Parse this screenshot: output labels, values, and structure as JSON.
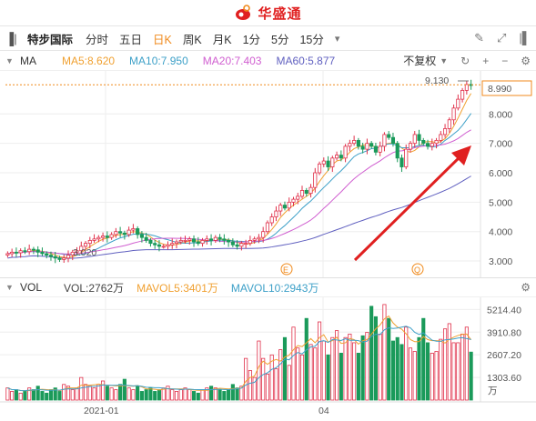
{
  "app": {
    "name": "华盛通"
  },
  "toolbar": {
    "stock_name": "特步国际",
    "periods": [
      {
        "label": "分时",
        "active": false
      },
      {
        "label": "五日",
        "active": false
      },
      {
        "label": "日K",
        "active": true
      },
      {
        "label": "周K",
        "active": false
      },
      {
        "label": "月K",
        "active": false
      },
      {
        "label": "1分",
        "active": false
      },
      {
        "label": "5分",
        "active": false
      },
      {
        "label": "15分",
        "active": false
      }
    ],
    "more_caret": "▾"
  },
  "ma_bar": {
    "name": "MA",
    "items": [
      {
        "label": "MA5:8.620",
        "color": "#f0a030"
      },
      {
        "label": "MA10:7.950",
        "color": "#3da0c8"
      },
      {
        "label": "MA20:7.403",
        "color": "#d05ed0"
      },
      {
        "label": "MA60:5.877",
        "color": "#6060c0"
      }
    ],
    "adjust": "不复权"
  },
  "price_chart": {
    "y_ticks": [
      "8.000",
      "7.000",
      "6.000",
      "5.000",
      "4.000",
      "3.000"
    ],
    "high_label": "9.130",
    "low_label": "3.020",
    "last_price": "8.990",
    "markers": [
      "E",
      "Q"
    ]
  },
  "vol_bar": {
    "name": "VOL",
    "items": [
      {
        "label": "VOL:2762万",
        "color": "#444444"
      },
      {
        "label": "MAVOL5:3401万",
        "color": "#f0a030"
      },
      {
        "label": "MAVOL10:2943万",
        "color": "#3da0c8"
      }
    ]
  },
  "vol_chart": {
    "y_ticks": [
      "5214.40",
      "3910.80",
      "2607.20",
      "1303.60"
    ],
    "unit": "万"
  },
  "x_axis": {
    "labels": [
      "2021-01",
      "04"
    ]
  },
  "colors": {
    "up": "#e0304a",
    "down": "#1a9a5a",
    "accent": "#f08a1c",
    "arrow": "#e02020"
  },
  "chart_data": {
    "type": "candlestick",
    "price_axis": {
      "ylim": [
        2.6,
        9.4
      ]
    },
    "volume_axis": {
      "ylim": [
        0,
        5600
      ],
      "unit": "万"
    },
    "last_price": 8.99,
    "high": 9.13,
    "low": 3.02,
    "ma": {
      "MA5": 8.62,
      "MA10": 7.95,
      "MA20": 7.403,
      "MA60": 5.877
    },
    "vol": {
      "VOL": 2762,
      "MAVOL5": 3401,
      "MAVOL10": 2943
    },
    "close_series": [
      3.25,
      3.3,
      3.28,
      3.35,
      3.32,
      3.4,
      3.38,
      3.3,
      3.25,
      3.2,
      3.15,
      3.1,
      3.05,
      3.1,
      3.2,
      3.3,
      3.35,
      3.5,
      3.6,
      3.7,
      3.75,
      3.8,
      3.85,
      3.8,
      3.9,
      4.0,
      3.95,
      3.9,
      4.05,
      4.1,
      3.9,
      3.8,
      3.7,
      3.6,
      3.55,
      3.5,
      3.5,
      3.55,
      3.6,
      3.65,
      3.7,
      3.7,
      3.75,
      3.65,
      3.6,
      3.7,
      3.75,
      3.7,
      3.8,
      3.75,
      3.7,
      3.65,
      3.55,
      3.5,
      3.6,
      3.6,
      3.7,
      3.75,
      3.8,
      4.0,
      4.3,
      4.5,
      4.7,
      4.9,
      4.8,
      5.0,
      5.1,
      5.2,
      5.4,
      5.3,
      5.5,
      6.0,
      6.3,
      6.4,
      6.2,
      6.5,
      6.6,
      6.5,
      6.9,
      7.0,
      7.1,
      6.9,
      6.8,
      7.0,
      6.9,
      6.7,
      6.9,
      7.3,
      7.2,
      7.0,
      6.5,
      6.2,
      6.8,
      7.0,
      7.3,
      7.1,
      7.0,
      6.9,
      7.0,
      7.1,
      7.3,
      7.5,
      7.8,
      8.2,
      8.5,
      8.8,
      9.0,
      8.99
    ],
    "volume_series": [
      700,
      500,
      600,
      400,
      500,
      700,
      600,
      800,
      500,
      400,
      600,
      700,
      500,
      900,
      800,
      600,
      700,
      1300,
      900,
      800,
      700,
      900,
      1100,
      800,
      700,
      600,
      900,
      1200,
      700,
      600,
      800,
      500,
      600,
      700,
      500,
      600,
      700,
      800,
      600,
      500,
      600,
      700,
      600,
      500,
      400,
      600,
      700,
      800,
      700,
      600,
      500,
      600,
      900,
      700,
      800,
      2400,
      1700,
      1300,
      3400,
      2400,
      1500,
      2600,
      1800,
      2900,
      3600,
      2000,
      4200,
      3000,
      2600,
      4700,
      3200,
      3000,
      4500,
      3400,
      2600,
      3600,
      4000,
      2700,
      3600,
      3800,
      3300,
      2700,
      3700,
      3900,
      5400,
      4800,
      3800,
      5500,
      4700,
      3400,
      3600,
      3200,
      4200,
      3000,
      2800,
      3600,
      4700,
      3300,
      2700,
      2800,
      3500,
      4100,
      4400,
      3300,
      3300,
      3800,
      4200,
      2762
    ],
    "x_labels": [
      "2021-01",
      "04"
    ]
  }
}
